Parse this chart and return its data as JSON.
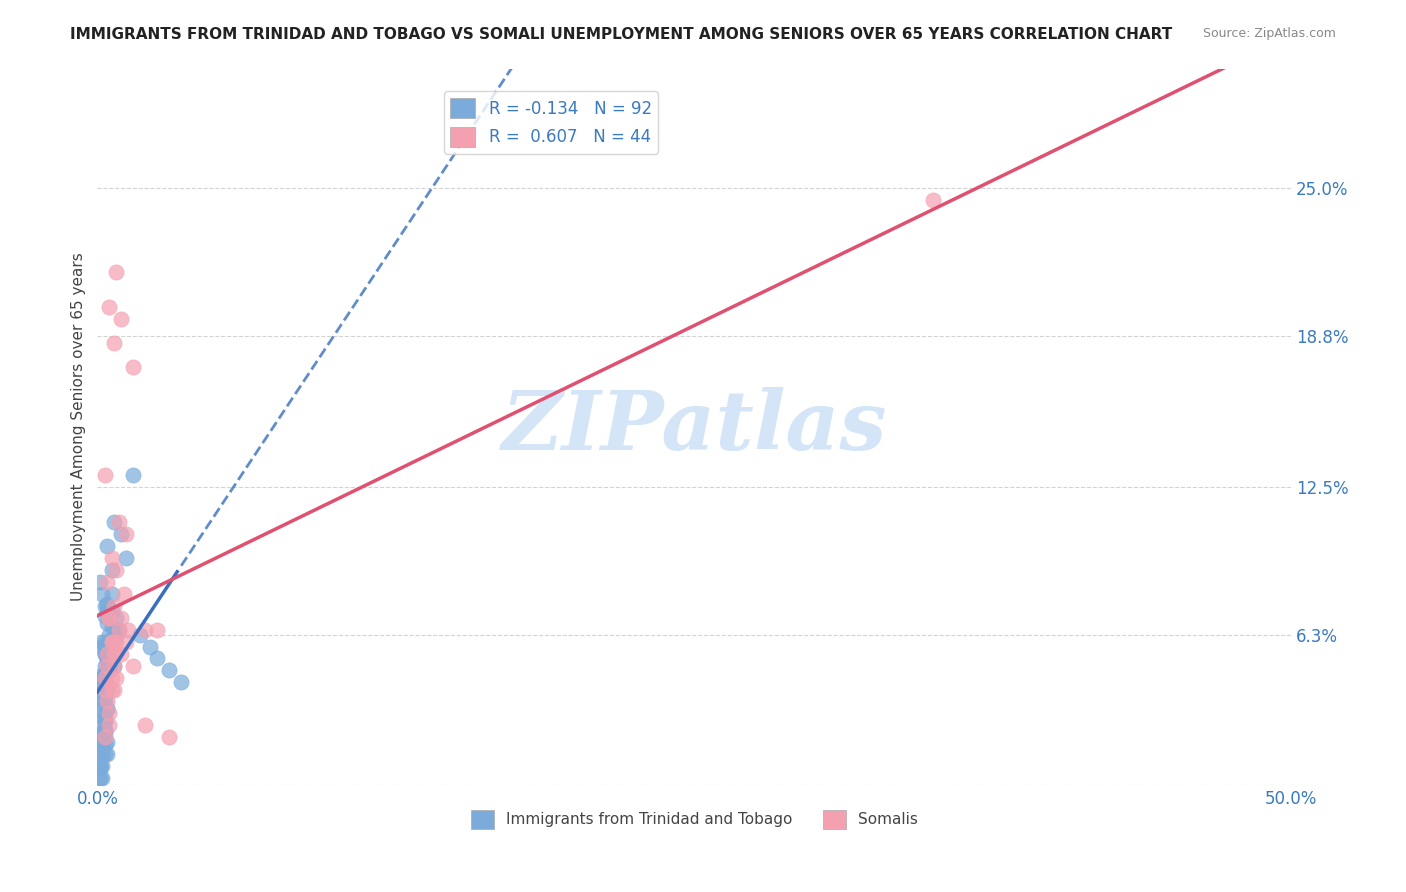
{
  "title": "IMMIGRANTS FROM TRINIDAD AND TOBAGO VS SOMALI UNEMPLOYMENT AMONG SENIORS OVER 65 YEARS CORRELATION CHART",
  "source": "Source: ZipAtlas.com",
  "xlabel": "",
  "ylabel": "Unemployment Among Seniors over 65 years",
  "xlim": [
    0,
    0.5
  ],
  "ylim": [
    0,
    0.3
  ],
  "yticks": [
    0.0,
    0.063,
    0.125,
    0.188,
    0.25
  ],
  "ytick_labels": [
    "",
    "6.3%",
    "12.5%",
    "18.8%",
    "25.0%"
  ],
  "xticks": [
    0.0,
    0.1,
    0.2,
    0.3,
    0.4,
    0.5
  ],
  "xtick_labels": [
    "0.0%",
    "",
    "",
    "",
    "",
    "50.0%"
  ],
  "blue_R": -0.134,
  "blue_N": 92,
  "pink_R": 0.607,
  "pink_N": 44,
  "blue_color": "#7aabdb",
  "pink_color": "#f4a0b0",
  "blue_line_color": "#3a6fbf",
  "pink_line_color": "#e05070",
  "watermark": "ZIPatlas",
  "watermark_color": "#c8dff5",
  "legend_label_blue": "Immigrants from Trinidad and Tobago",
  "legend_label_pink": "Somalis",
  "blue_points_x": [
    0.005,
    0.003,
    0.004,
    0.008,
    0.002,
    0.006,
    0.003,
    0.001,
    0.004,
    0.007,
    0.01,
    0.012,
    0.008,
    0.006,
    0.003,
    0.005,
    0.002,
    0.004,
    0.015,
    0.003,
    0.007,
    0.009,
    0.004,
    0.003,
    0.002,
    0.005,
    0.006,
    0.008,
    0.003,
    0.004,
    0.002,
    0.001,
    0.003,
    0.005,
    0.007,
    0.004,
    0.006,
    0.002,
    0.003,
    0.001,
    0.004,
    0.003,
    0.005,
    0.002,
    0.001,
    0.006,
    0.003,
    0.004,
    0.002,
    0.005,
    0.003,
    0.002,
    0.001,
    0.004,
    0.002,
    0.003,
    0.001,
    0.002,
    0.003,
    0.004,
    0.005,
    0.002,
    0.003,
    0.001,
    0.004,
    0.003,
    0.002,
    0.001,
    0.003,
    0.004,
    0.022,
    0.018,
    0.03,
    0.025,
    0.035,
    0.002,
    0.004,
    0.003,
    0.001,
    0.002,
    0.003,
    0.001,
    0.002,
    0.001,
    0.004,
    0.003,
    0.002,
    0.001,
    0.003,
    0.002,
    0.001,
    0.002
  ],
  "blue_points_y": [
    0.05,
    0.06,
    0.055,
    0.065,
    0.08,
    0.09,
    0.075,
    0.085,
    0.1,
    0.11,
    0.105,
    0.095,
    0.07,
    0.06,
    0.05,
    0.055,
    0.045,
    0.04,
    0.13,
    0.035,
    0.05,
    0.065,
    0.075,
    0.055,
    0.06,
    0.07,
    0.08,
    0.062,
    0.058,
    0.072,
    0.045,
    0.04,
    0.055,
    0.048,
    0.063,
    0.068,
    0.073,
    0.058,
    0.043,
    0.038,
    0.052,
    0.047,
    0.063,
    0.041,
    0.036,
    0.066,
    0.071,
    0.076,
    0.046,
    0.056,
    0.042,
    0.037,
    0.032,
    0.047,
    0.027,
    0.022,
    0.017,
    0.032,
    0.037,
    0.042,
    0.057,
    0.022,
    0.027,
    0.012,
    0.032,
    0.017,
    0.022,
    0.007,
    0.027,
    0.032,
    0.058,
    0.063,
    0.048,
    0.053,
    0.043,
    0.018,
    0.013,
    0.023,
    0.008,
    0.018,
    0.023,
    0.008,
    0.013,
    0.003,
    0.018,
    0.013,
    0.008,
    0.003,
    0.028,
    0.013,
    0.008,
    0.003
  ],
  "pink_points_x": [
    0.005,
    0.008,
    0.01,
    0.007,
    0.003,
    0.012,
    0.015,
    0.006,
    0.004,
    0.009,
    0.011,
    0.007,
    0.005,
    0.008,
    0.02,
    0.006,
    0.004,
    0.01,
    0.013,
    0.007,
    0.003,
    0.008,
    0.006,
    0.004,
    0.009,
    0.005,
    0.007,
    0.003,
    0.006,
    0.008,
    0.015,
    0.01,
    0.012,
    0.025,
    0.007,
    0.005,
    0.02,
    0.03,
    0.35,
    0.004,
    0.006,
    0.008,
    0.003,
    0.005
  ],
  "pink_points_y": [
    0.2,
    0.215,
    0.195,
    0.185,
    0.13,
    0.105,
    0.175,
    0.095,
    0.085,
    0.11,
    0.08,
    0.075,
    0.07,
    0.09,
    0.065,
    0.06,
    0.055,
    0.07,
    0.065,
    0.05,
    0.045,
    0.055,
    0.06,
    0.05,
    0.065,
    0.07,
    0.055,
    0.04,
    0.045,
    0.06,
    0.05,
    0.055,
    0.06,
    0.065,
    0.04,
    0.03,
    0.025,
    0.02,
    0.245,
    0.035,
    0.04,
    0.045,
    0.02,
    0.025
  ]
}
